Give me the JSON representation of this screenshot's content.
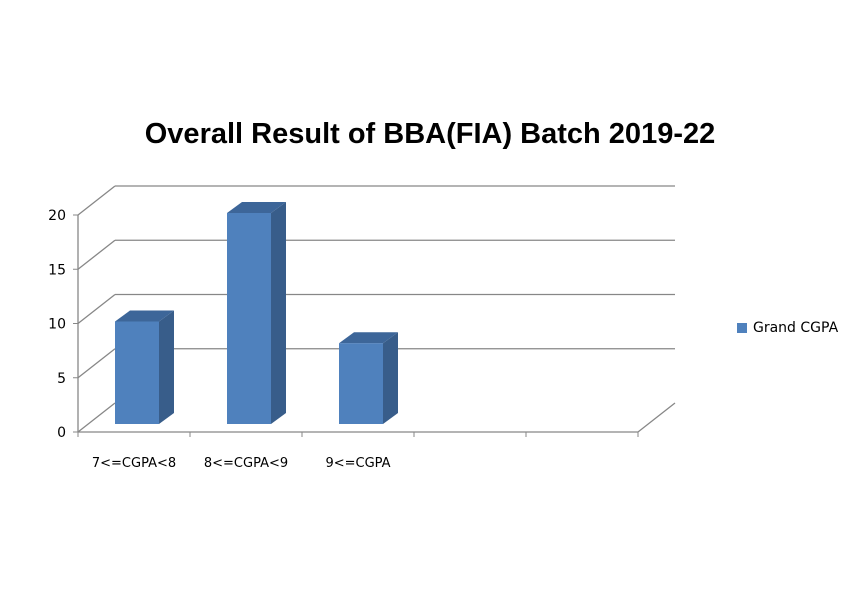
{
  "chart_data": {
    "type": "bar",
    "title": "Overall Result of BBA(FIA) Batch 2019-22",
    "categories": [
      "7<=CGPA<8",
      "8<=CGPA<9",
      "9<=CGPA",
      "",
      ""
    ],
    "series": [
      {
        "name": "Grand CGPA",
        "values": [
          10,
          20,
          8,
          null,
          null
        ],
        "color": "#4F81BD"
      }
    ],
    "yticks": [
      0,
      5,
      10,
      15,
      20
    ],
    "ylim": [
      0,
      20
    ],
    "grid": true,
    "legend_position": "right",
    "three_d": true
  }
}
